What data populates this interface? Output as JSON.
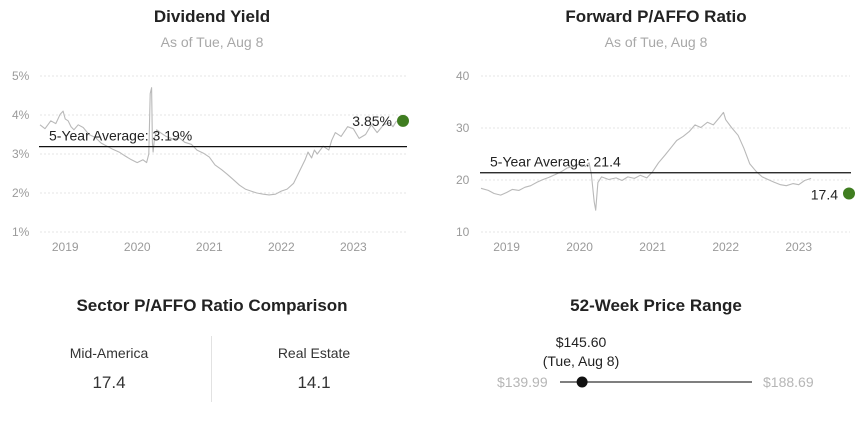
{
  "dividend": {
    "title": "Dividend Yield",
    "subtitle": "As of Tue, Aug 8",
    "average_label": "5-Year Average: 3.19%",
    "current_label": "3.85%"
  },
  "pffo": {
    "title": "Forward P/AFFO Ratio",
    "subtitle": "As of Tue, Aug 8",
    "average_label": "5-Year Average: 21.4",
    "current_label": "17.4"
  },
  "sector": {
    "title": "Sector P/AFFO Ratio Comparison",
    "items": [
      {
        "label": "Mid-America",
        "value": "17.4"
      },
      {
        "label": "Real Estate",
        "value": "14.1"
      }
    ]
  },
  "price_range": {
    "title": "52-Week Price Range",
    "low": "$139.99",
    "high": "$188.69",
    "current": "$145.60",
    "current_date": "(Tue, Aug 8)",
    "low_value": 139.99,
    "high_value": 188.69,
    "current_value": 145.6
  },
  "colors": {
    "series_line": "#b9b9b9",
    "average_line": "#111111",
    "current_marker": "#3f7d20",
    "gridline": "#e6e6e6",
    "range_track": "#333333",
    "range_marker": "#111111"
  },
  "chart_data": [
    {
      "type": "line",
      "title": "Dividend Yield",
      "subtitle": "As of Tue, Aug 8",
      "y_unit": "%",
      "ylim": [
        1,
        5
      ],
      "y_ticks": [
        1,
        2,
        3,
        4,
        5
      ],
      "y_tick_labels": [
        "1%",
        "2%",
        "3%",
        "4%",
        "5%"
      ],
      "xlim": [
        2018.65,
        2023.62
      ],
      "x_ticks": [
        2019,
        2020,
        2021,
        2022,
        2023
      ],
      "x_tick_labels": [
        "2019",
        "2020",
        "2021",
        "2022",
        "2023"
      ],
      "grid": true,
      "average": 3.19,
      "current": 3.85,
      "series": [
        {
          "x": [
            2018.65,
            2018.72,
            2018.8,
            2018.87,
            2018.93,
            2018.97,
            2019.0,
            2019.04,
            2019.08,
            2019.12,
            2019.18,
            2019.25,
            2019.33,
            2019.42,
            2019.5,
            2019.58,
            2019.66,
            2019.75,
            2019.83,
            2019.92,
            2020.0,
            2020.08,
            2020.13,
            2020.16,
            2020.18,
            2020.2,
            2020.21,
            2020.22,
            2020.24,
            2020.27,
            2020.32,
            2020.4,
            2020.5,
            2020.58,
            2020.66,
            2020.75,
            2020.83,
            2020.92,
            2021.0,
            2021.08,
            2021.17,
            2021.25,
            2021.33,
            2021.42,
            2021.5,
            2021.58,
            2021.66,
            2021.75,
            2021.83,
            2021.92,
            2022.0,
            2022.08,
            2022.17,
            2022.25,
            2022.33,
            2022.37,
            2022.42,
            2022.46,
            2022.5,
            2022.58,
            2022.66,
            2022.7,
            2022.75,
            2022.83,
            2022.92,
            2023.0,
            2023.08,
            2023.17,
            2023.25,
            2023.33,
            2023.42,
            2023.5,
            2023.55,
            2023.6
          ],
          "y": [
            3.75,
            3.65,
            3.85,
            3.78,
            4.02,
            4.1,
            3.9,
            3.85,
            3.7,
            3.62,
            3.75,
            3.68,
            3.5,
            3.42,
            3.28,
            3.2,
            3.12,
            3.05,
            2.95,
            2.85,
            2.78,
            2.85,
            2.78,
            3.0,
            4.55,
            4.7,
            3.3,
            3.05,
            3.4,
            3.62,
            3.55,
            3.45,
            3.38,
            3.42,
            3.3,
            3.25,
            3.1,
            3.02,
            2.92,
            2.72,
            2.6,
            2.48,
            2.35,
            2.2,
            2.1,
            2.05,
            2.0,
            1.97,
            1.95,
            1.97,
            2.05,
            2.1,
            2.25,
            2.55,
            2.85,
            3.05,
            2.9,
            3.1,
            3.0,
            3.2,
            3.1,
            3.35,
            3.55,
            3.45,
            3.7,
            3.65,
            3.4,
            3.5,
            3.75,
            3.55,
            3.75,
            3.8,
            3.7,
            3.85
          ]
        }
      ]
    },
    {
      "type": "line",
      "title": "Forward P/AFFO Ratio",
      "subtitle": "As of Tue, Aug 8",
      "ylim": [
        10,
        40
      ],
      "y_ticks": [
        10,
        20,
        30,
        40
      ],
      "y_tick_labels": [
        "10",
        "20",
        "30",
        "40"
      ],
      "xlim": [
        2018.65,
        2023.62
      ],
      "x_ticks": [
        2019,
        2020,
        2021,
        2022,
        2023
      ],
      "x_tick_labels": [
        "2019",
        "2020",
        "2021",
        "2022",
        "2023"
      ],
      "grid": true,
      "average": 21.4,
      "current": 17.4,
      "series": [
        {
          "x": [
            2018.65,
            2018.75,
            2018.83,
            2018.92,
            2019.0,
            2019.08,
            2019.17,
            2019.25,
            2019.33,
            2019.42,
            2019.5,
            2019.58,
            2019.66,
            2019.75,
            2019.83,
            2019.92,
            2020.0,
            2020.08,
            2020.13,
            2020.16,
            2020.2,
            2020.22,
            2020.25,
            2020.3,
            2020.4,
            2020.5,
            2020.58,
            2020.66,
            2020.75,
            2020.83,
            2020.92,
            2021.0,
            2021.08,
            2021.17,
            2021.25,
            2021.33,
            2021.42,
            2021.5,
            2021.58,
            2021.66,
            2021.75,
            2021.83,
            2021.92,
            2021.97,
            2022.0,
            2022.08,
            2022.17,
            2022.25,
            2022.33,
            2022.42,
            2022.5,
            2022.58,
            2022.66,
            2022.75,
            2022.83,
            2022.92,
            2023.0,
            2023.08,
            2023.17
          ],
          "y": [
            18.4,
            18.0,
            17.4,
            17.1,
            17.6,
            18.2,
            18.0,
            18.6,
            18.9,
            19.6,
            20.1,
            20.5,
            21.0,
            21.6,
            22.3,
            22.6,
            23.1,
            22.6,
            23.3,
            21.2,
            15.8,
            14.2,
            19.5,
            20.6,
            20.1,
            20.4,
            19.9,
            20.6,
            20.3,
            20.9,
            20.4,
            21.6,
            23.3,
            24.8,
            26.2,
            27.6,
            28.4,
            29.3,
            30.6,
            30.1,
            31.1,
            30.6,
            32.1,
            33.0,
            31.6,
            30.1,
            28.6,
            26.1,
            23.1,
            21.6,
            20.6,
            20.1,
            19.6,
            19.1,
            18.9,
            19.3,
            19.1,
            19.9,
            20.3
          ]
        }
      ]
    }
  ]
}
